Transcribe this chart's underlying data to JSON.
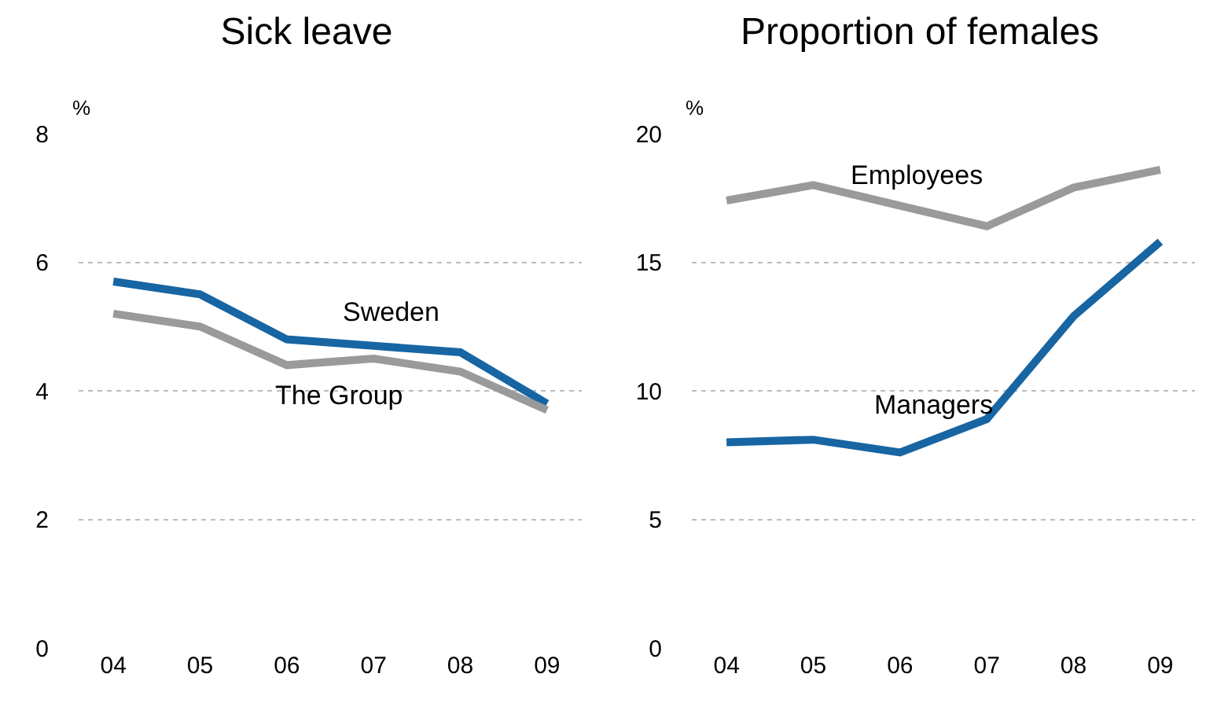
{
  "chart_data": [
    {
      "type": "line",
      "title": "Sick leave",
      "ylabel": "%",
      "categories": [
        "04",
        "05",
        "06",
        "07",
        "08",
        "09"
      ],
      "ylim": [
        0,
        8
      ],
      "yticks": [
        0,
        2,
        4,
        6,
        8
      ],
      "grid": "y",
      "legend": false,
      "line_style": "solid",
      "marker": "none",
      "series": [
        {
          "name": "Sweden",
          "color": "#1765a3",
          "values": [
            5.7,
            5.5,
            4.8,
            4.7,
            4.6,
            3.8
          ]
        },
        {
          "name": "The Group",
          "color": "#9a9a9a",
          "values": [
            5.2,
            5.0,
            4.4,
            4.5,
            4.3,
            3.7
          ]
        }
      ]
    },
    {
      "type": "line",
      "title": "Proportion of females",
      "ylabel": "%",
      "categories": [
        "04",
        "05",
        "06",
        "07",
        "08",
        "09"
      ],
      "ylim": [
        0,
        20
      ],
      "yticks": [
        0,
        5,
        10,
        15,
        20
      ],
      "grid": "y",
      "legend": false,
      "line_style": "solid",
      "marker": "none",
      "series": [
        {
          "name": "Employees",
          "color": "#9a9a9a",
          "values": [
            17.4,
            18.0,
            17.2,
            16.4,
            17.9,
            18.6
          ]
        },
        {
          "name": "Managers",
          "color": "#1765a3",
          "values": [
            8.0,
            8.1,
            7.6,
            8.9,
            12.9,
            15.8
          ]
        }
      ]
    }
  ]
}
